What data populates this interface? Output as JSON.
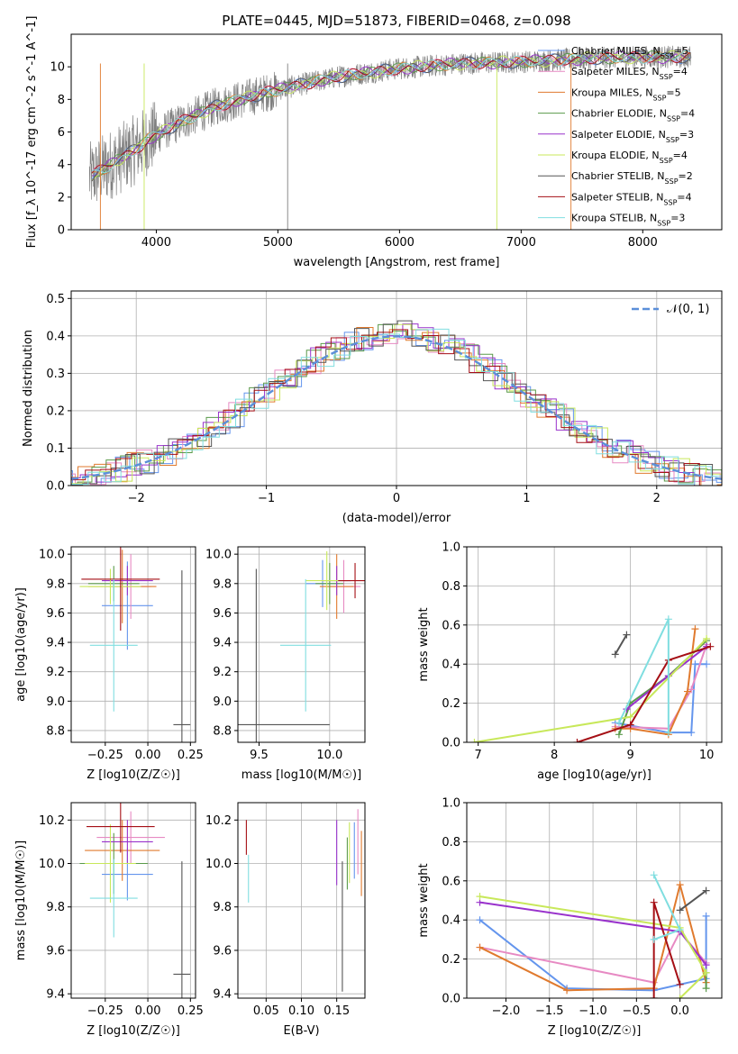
{
  "title": "PLATE=0445, MJD=51873, FIBERID=0468, z=0.098",
  "colors": {
    "chabrier_miles": "#6495ED",
    "salpeter_miles": "#E78AC3",
    "kroupa_miles": "#E07A2E",
    "chabrier_elodie": "#5A9A4A",
    "salpeter_elodie": "#9932CC",
    "kroupa_elodie": "#C8E85A",
    "chabrier_stelib": "#555555",
    "salpeter_stelib": "#A50F15",
    "kroupa_stelib": "#80DEE0",
    "data": "#808080",
    "gaussian": "#5B8FD9"
  },
  "chart_data": [
    {
      "type": "line",
      "id": "spectrum",
      "xlabel": "wavelength [Angstrom, rest frame]",
      "ylabel": "Flux [f_λ 10^-17 erg cm^-2 s^-1 A^-1]",
      "xlim": [
        3300,
        8650
      ],
      "ylim": [
        0,
        12
      ],
      "xticks": [
        4000,
        5000,
        6000,
        7000,
        8000
      ],
      "yticks": [
        0,
        2,
        4,
        6,
        8,
        10
      ],
      "grid": false,
      "legend_position": "right",
      "legend": [
        {
          "key": "chabrier_miles",
          "label": "Chabrier MILES, N",
          "sub": "SSP",
          "n": "=5"
        },
        {
          "key": "salpeter_miles",
          "label": "Salpeter MILES, N",
          "sub": "SSP",
          "n": "=4"
        },
        {
          "key": "kroupa_miles",
          "label": "Kroupa MILES, N",
          "sub": "SSP",
          "n": "=5"
        },
        {
          "key": "chabrier_elodie",
          "label": "Chabrier ELODIE, N",
          "sub": "SSP",
          "n": "=4"
        },
        {
          "key": "salpeter_elodie",
          "label": "Salpeter ELODIE, N",
          "sub": "SSP",
          "n": "=3"
        },
        {
          "key": "kroupa_elodie",
          "label": "Kroupa ELODIE, N",
          "sub": "SSP",
          "n": "=4"
        },
        {
          "key": "chabrier_stelib",
          "label": "Chabrier STELIB, N",
          "sub": "SSP",
          "n": "=2"
        },
        {
          "key": "salpeter_stelib",
          "label": "Salpeter STELIB, N",
          "sub": "SSP",
          "n": "=4"
        },
        {
          "key": "kroupa_stelib",
          "label": "Kroupa STELIB, N",
          "sub": "SSP",
          "n": "=3"
        }
      ],
      "continuum": [
        [
          3450,
          3.2
        ],
        [
          3600,
          3.9
        ],
        [
          3800,
          4.8
        ],
        [
          3950,
          5.6
        ],
        [
          4200,
          6.6
        ],
        [
          4500,
          7.6
        ],
        [
          5000,
          8.6
        ],
        [
          5500,
          9.4
        ],
        [
          6000,
          9.9
        ],
        [
          6500,
          10.2
        ],
        [
          7000,
          10.3
        ],
        [
          7500,
          10.5
        ],
        [
          8000,
          10.6
        ],
        [
          8400,
          10.6
        ]
      ]
    },
    {
      "type": "line",
      "id": "residuals",
      "xlabel": "(data-model)/error",
      "ylabel": "Normed distribution",
      "xlim": [
        -2.5,
        2.5
      ],
      "ylim": [
        0,
        0.52
      ],
      "xticks": [
        -2,
        -1,
        0,
        1,
        2
      ],
      "yticks": [
        0.0,
        0.1,
        0.2,
        0.3,
        0.4,
        0.5
      ],
      "grid": true,
      "legend_position": "top-right",
      "gaussian_label": "𝒩(0, 1)"
    },
    {
      "type": "scatter",
      "id": "age_vs_Z",
      "xlabel": "Z [log10(Z/Z☉)]",
      "ylabel": "age [log10(age/yr)]",
      "xlim": [
        -0.45,
        0.28
      ],
      "ylim": [
        8.72,
        10.05
      ],
      "xticks": [
        -0.25,
        0.0,
        0.25
      ],
      "yticks": [
        8.8,
        9.0,
        9.2,
        9.4,
        9.6,
        9.8,
        10.0
      ],
      "grid": true,
      "points": [
        {
          "key": "chabrier_miles",
          "x": -0.12,
          "y": 9.65,
          "xerr": 0.15,
          "yerr": 0.3
        },
        {
          "key": "salpeter_miles",
          "x": -0.1,
          "y": 9.78,
          "xerr": 0.12,
          "yerr": 0.22
        },
        {
          "key": "kroupa_miles",
          "x": -0.15,
          "y": 9.78,
          "xerr": 0.2,
          "yerr": 0.25
        },
        {
          "key": "chabrier_elodie",
          "x": -0.2,
          "y": 9.8,
          "xerr": 0.15,
          "yerr": 0.12
        },
        {
          "key": "salpeter_elodie",
          "x": -0.12,
          "y": 9.82,
          "xerr": 0.15,
          "yerr": 0.1
        },
        {
          "key": "kroupa_elodie",
          "x": -0.22,
          "y": 9.78,
          "xerr": 0.18,
          "yerr": 0.12
        },
        {
          "key": "chabrier_stelib",
          "x": 0.2,
          "y": 8.84,
          "xerr": 0.05,
          "yerr": 1.05
        },
        {
          "key": "salpeter_stelib",
          "x": -0.16,
          "y": 9.83,
          "xerr": 0.23,
          "yerr": 0.35
        },
        {
          "key": "kroupa_stelib",
          "x": -0.2,
          "y": 9.38,
          "xerr": 0.14,
          "yerr": 0.45
        }
      ]
    },
    {
      "type": "scatter",
      "id": "age_vs_mass",
      "xlabel": "mass [log10(M/M☉)]",
      "ylabel": "",
      "xlim": [
        9.35,
        10.25
      ],
      "ylim": [
        8.72,
        10.05
      ],
      "xticks": [
        9.5,
        10.0
      ],
      "yticks": [
        8.8,
        9.0,
        9.2,
        9.4,
        9.6,
        9.8,
        10.0
      ],
      "grid": true,
      "points": [
        {
          "key": "chabrier_miles",
          "x": 9.95,
          "y": 9.8,
          "xerr": 0.12,
          "yerr": 0.16
        },
        {
          "key": "salpeter_miles",
          "x": 10.1,
          "y": 9.78,
          "xerr": 0.12,
          "yerr": 0.18
        },
        {
          "key": "kroupa_miles",
          "x": 10.05,
          "y": 9.78,
          "xerr": 0.12,
          "yerr": 0.22
        },
        {
          "key": "chabrier_elodie",
          "x": 10.0,
          "y": 9.8,
          "xerr": 0.1,
          "yerr": 0.14
        },
        {
          "key": "salpeter_elodie",
          "x": 10.05,
          "y": 9.82,
          "xerr": 0.1,
          "yerr": 0.1
        },
        {
          "key": "kroupa_elodie",
          "x": 9.98,
          "y": 9.82,
          "xerr": 0.15,
          "yerr": 0.2
        },
        {
          "key": "chabrier_stelib",
          "x": 9.48,
          "y": 8.84,
          "xerr": 0.52,
          "yerr": 1.06
        },
        {
          "key": "salpeter_stelib",
          "x": 10.18,
          "y": 9.82,
          "xerr": 0.12,
          "yerr": 0.12
        },
        {
          "key": "kroupa_stelib",
          "x": 9.83,
          "y": 9.38,
          "xerr": 0.18,
          "yerr": 0.45
        }
      ]
    },
    {
      "type": "line",
      "id": "massweight_vs_age",
      "xlabel": "age [log10(age/yr)]",
      "ylabel": "mass weight",
      "xlim": [
        6.85,
        10.2
      ],
      "ylim": [
        0,
        1.0
      ],
      "xticks": [
        7,
        8,
        9,
        10
      ],
      "yticks": [
        0.0,
        0.2,
        0.4,
        0.6,
        0.8,
        1.0
      ],
      "grid": true,
      "series": [
        {
          "key": "chabrier_miles",
          "points": [
            [
              8.8,
              0.1
            ],
            [
              9.5,
              0.05
            ],
            [
              9.8,
              0.05
            ],
            [
              9.85,
              0.4
            ],
            [
              10.0,
              0.4
            ]
          ]
        },
        {
          "key": "salpeter_miles",
          "points": [
            [
              8.8,
              0.08
            ],
            [
              9.5,
              0.07
            ],
            [
              9.8,
              0.27
            ],
            [
              10.0,
              0.5
            ]
          ]
        },
        {
          "key": "kroupa_miles",
          "points": [
            [
              8.8,
              0.07
            ],
            [
              9.0,
              0.07
            ],
            [
              9.5,
              0.04
            ],
            [
              9.75,
              0.26
            ],
            [
              9.85,
              0.58
            ]
          ]
        },
        {
          "key": "chabrier_elodie",
          "points": [
            [
              8.85,
              0.04
            ],
            [
              9.0,
              0.2
            ],
            [
              9.5,
              0.34
            ],
            [
              10.0,
              0.52
            ]
          ]
        },
        {
          "key": "salpeter_elodie",
          "points": [
            [
              8.95,
              0.17
            ],
            [
              9.5,
              0.34
            ],
            [
              10.0,
              0.49
            ]
          ]
        },
        {
          "key": "kroupa_elodie",
          "points": [
            [
              6.95,
              0.0
            ],
            [
              9.0,
              0.13
            ],
            [
              10.0,
              0.53
            ]
          ]
        },
        {
          "key": "chabrier_stelib",
          "points": [
            [
              8.8,
              0.45
            ],
            [
              8.95,
              0.55
            ]
          ]
        },
        {
          "key": "salpeter_stelib",
          "points": [
            [
              8.3,
              0.0
            ],
            [
              9.0,
              0.09
            ],
            [
              9.5,
              0.42
            ],
            [
              10.05,
              0.49
            ]
          ]
        },
        {
          "key": "kroupa_stelib",
          "points": [
            [
              8.85,
              0.1
            ],
            [
              9.5,
              0.63
            ],
            [
              9.5,
              0.05
            ]
          ]
        }
      ]
    },
    {
      "type": "scatter",
      "id": "mass_vs_Z",
      "xlabel": "Z [log10(Z/Z☉)]",
      "ylabel": "mass [log10(M/M☉)]",
      "xlim": [
        -0.45,
        0.28
      ],
      "ylim": [
        9.38,
        10.28
      ],
      "xticks": [
        -0.25,
        0.0,
        0.25
      ],
      "yticks": [
        9.4,
        9.6,
        9.8,
        10.0,
        10.2
      ],
      "grid": true,
      "points": [
        {
          "key": "chabrier_miles",
          "x": -0.12,
          "y": 9.95,
          "xerr": 0.15,
          "yerr": 0.12
        },
        {
          "key": "salpeter_miles",
          "x": -0.1,
          "y": 10.12,
          "xerr": 0.2,
          "yerr": 0.12
        },
        {
          "key": "kroupa_miles",
          "x": -0.15,
          "y": 10.06,
          "xerr": 0.22,
          "yerr": 0.14
        },
        {
          "key": "chabrier_elodie",
          "x": -0.2,
          "y": 10.0,
          "xerr": 0.2,
          "yerr": 0.14
        },
        {
          "key": "salpeter_elodie",
          "x": -0.12,
          "y": 10.1,
          "xerr": 0.15,
          "yerr": 0.1
        },
        {
          "key": "kroupa_elodie",
          "x": -0.22,
          "y": 10.0,
          "xerr": 0.15,
          "yerr": 0.18
        },
        {
          "key": "chabrier_stelib",
          "x": 0.2,
          "y": 9.49,
          "xerr": 0.05,
          "yerr": 0.52
        },
        {
          "key": "salpeter_stelib",
          "x": -0.16,
          "y": 10.17,
          "xerr": 0.2,
          "yerr": 0.12
        },
        {
          "key": "kroupa_stelib",
          "x": -0.2,
          "y": 9.84,
          "xerr": 0.14,
          "yerr": 0.18
        }
      ]
    },
    {
      "type": "scatter",
      "id": "mass_vs_ebv",
      "xlabel": "E(B-V)",
      "ylabel": "",
      "xlim": [
        0.01,
        0.19
      ],
      "ylim": [
        9.38,
        10.28
      ],
      "xticks": [
        0.05,
        0.1,
        0.15
      ],
      "yticks": [
        9.4,
        9.6,
        9.8,
        10.0,
        10.2
      ],
      "grid": true,
      "points": [
        {
          "key": "chabrier_miles",
          "x": 0.175,
          "y": 10.06,
          "xerr": 0,
          "yerr": 0.13
        },
        {
          "key": "salpeter_miles",
          "x": 0.18,
          "y": 10.1,
          "xerr": 0,
          "yerr": 0.15
        },
        {
          "key": "kroupa_miles",
          "x": 0.185,
          "y": 10.0,
          "xerr": 0,
          "yerr": 0.15
        },
        {
          "key": "chabrier_elodie",
          "x": 0.165,
          "y": 10.0,
          "xerr": 0,
          "yerr": 0.12
        },
        {
          "key": "salpeter_elodie",
          "x": 0.15,
          "y": 10.05,
          "xerr": 0,
          "yerr": 0.15
        },
        {
          "key": "kroupa_elodie",
          "x": 0.168,
          "y": 10.05,
          "xerr": 0,
          "yerr": 0.14
        },
        {
          "key": "chabrier_stelib",
          "x": 0.158,
          "y": 9.71,
          "xerr": 0,
          "yerr": 0.3
        },
        {
          "key": "salpeter_stelib",
          "x": 0.022,
          "y": 10.12,
          "xerr": 0,
          "yerr": 0.08
        },
        {
          "key": "kroupa_stelib",
          "x": 0.025,
          "y": 9.93,
          "xerr": 0,
          "yerr": 0.11
        }
      ]
    },
    {
      "type": "line",
      "id": "massweight_vs_Z",
      "xlabel": "Z [log10(Z/Z☉)]",
      "ylabel": "mass weight",
      "xlim": [
        -2.45,
        0.48
      ],
      "ylim": [
        0,
        1.0
      ],
      "xticks": [
        -2.0,
        -1.5,
        -1.0,
        -0.5,
        0.0
      ],
      "yticks": [
        0.0,
        0.2,
        0.4,
        0.6,
        0.8,
        1.0
      ],
      "grid": true,
      "series": [
        {
          "key": "chabrier_miles",
          "points": [
            [
              -2.3,
              0.4
            ],
            [
              -1.3,
              0.05
            ],
            [
              -0.3,
              0.04
            ],
            [
              0.3,
              0.1
            ],
            [
              0.3,
              0.42
            ]
          ]
        },
        {
          "key": "salpeter_miles",
          "points": [
            [
              -2.3,
              0.26
            ],
            [
              -0.3,
              0.08
            ],
            [
              0.0,
              0.34
            ],
            [
              0.3,
              0.18
            ]
          ]
        },
        {
          "key": "kroupa_miles",
          "points": [
            [
              -2.3,
              0.26
            ],
            [
              -1.3,
              0.04
            ],
            [
              -0.3,
              0.05
            ],
            [
              0.0,
              0.58
            ],
            [
              0.3,
              0.08
            ]
          ]
        },
        {
          "key": "chabrier_elodie",
          "points": [
            [
              0.3,
              0.05
            ],
            [
              0.3,
              0.13
            ]
          ]
        },
        {
          "key": "salpeter_elodie",
          "points": [
            [
              -2.3,
              0.49
            ],
            [
              0.0,
              0.34
            ],
            [
              0.3,
              0.17
            ]
          ]
        },
        {
          "key": "kroupa_elodie",
          "points": [
            [
              -2.3,
              0.52
            ],
            [
              0.0,
              0.36
            ],
            [
              0.3,
              0.13
            ],
            [
              0.0,
              0.0
            ]
          ]
        },
        {
          "key": "chabrier_stelib",
          "points": [
            [
              0.0,
              0.45
            ],
            [
              0.3,
              0.55
            ]
          ]
        },
        {
          "key": "salpeter_stelib",
          "points": [
            [
              -0.3,
              0.0
            ],
            [
              -0.3,
              0.49
            ],
            [
              0.0,
              0.07
            ]
          ]
        },
        {
          "key": "kroupa_stelib",
          "points": [
            [
              -0.3,
              0.63
            ],
            [
              0.0,
              0.35
            ],
            [
              -0.3,
              0.3
            ]
          ]
        }
      ]
    }
  ]
}
